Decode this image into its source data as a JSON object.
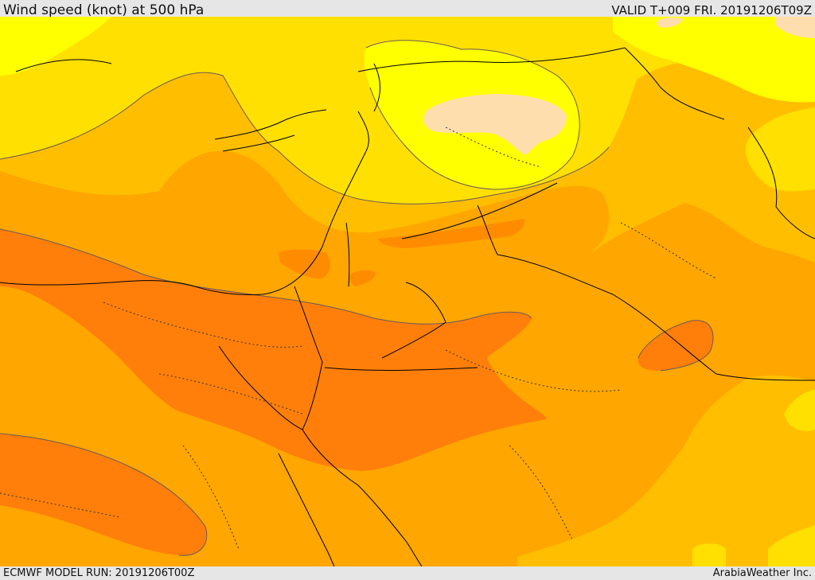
{
  "header": {
    "title": "Wind speed (knot) at 500 hPa",
    "valid_time": "VALID T+009 FRI. 20191206T09Z"
  },
  "footer": {
    "model_run": "ECMWF MODEL RUN: 20191206T00Z",
    "credit": "ArabiaWeather Inc."
  },
  "map": {
    "fill_colors": {
      "band_1": "#ffff00",
      "band_2": "#ffe000",
      "band_3": "#ffbf00",
      "band_4": "#ffa600",
      "band_5": "#ff8c00",
      "band_6": "#ff7f0a",
      "band_low": "#ffdead"
    },
    "line_colors": {
      "coastline": "#000000",
      "contour": "#6a5a5a",
      "border_dotted": "#333333"
    }
  }
}
